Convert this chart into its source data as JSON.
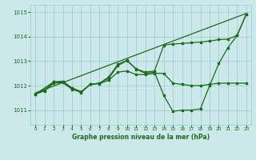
{
  "title": "Graphe pression niveau de la mer (hPa)",
  "bg_color": "#cce8ea",
  "grid_color": "#99cccc",
  "line_color": "#1a6b1a",
  "xlim": [
    -0.5,
    23.5
  ],
  "ylim": [
    1010.4,
    1015.3
  ],
  "yticks": [
    1011,
    1012,
    1013,
    1014,
    1015
  ],
  "xticks": [
    0,
    1,
    2,
    3,
    4,
    5,
    6,
    7,
    8,
    9,
    10,
    11,
    12,
    13,
    14,
    15,
    16,
    17,
    18,
    19,
    20,
    21,
    22,
    23
  ],
  "series1": {
    "x": [
      0,
      23
    ],
    "y": [
      1011.7,
      1014.95
    ]
  },
  "series2": {
    "x": [
      0,
      1,
      2,
      3,
      4,
      5,
      6,
      7,
      8,
      9,
      10,
      11,
      12,
      13,
      14,
      15,
      16,
      17,
      18,
      19,
      20,
      21,
      22,
      23
    ],
    "y": [
      1011.65,
      1011.82,
      1012.15,
      1012.15,
      1011.9,
      1011.75,
      1012.05,
      1012.1,
      1012.3,
      1012.82,
      1013.02,
      1012.67,
      1012.5,
      1012.55,
      1011.6,
      1010.95,
      1011.0,
      1011.0,
      1011.05,
      1012.0,
      1012.9,
      1013.55,
      1014.05,
      1014.92
    ]
  },
  "series3": {
    "x": [
      0,
      1,
      2,
      3,
      4,
      5,
      6,
      7,
      8,
      9,
      10,
      11,
      12,
      13,
      14,
      15,
      16,
      17,
      18,
      19,
      20,
      21,
      22,
      23
    ],
    "y": [
      1011.65,
      1011.78,
      1012.1,
      1012.12,
      1011.85,
      1011.72,
      1012.05,
      1012.08,
      1012.22,
      1012.55,
      1012.6,
      1012.45,
      1012.45,
      1012.5,
      1012.5,
      1012.1,
      1012.05,
      1012.0,
      1012.0,
      1012.05,
      1012.1,
      1012.1,
      1012.1,
      1012.1
    ]
  },
  "series4": {
    "x": [
      0,
      2,
      3,
      4,
      5,
      6,
      7,
      8,
      9,
      10,
      11,
      12,
      13,
      14,
      15,
      16,
      17,
      18,
      19,
      20,
      21,
      22,
      23
    ],
    "y": [
      1011.65,
      1012.15,
      1012.18,
      1011.9,
      1011.75,
      1012.05,
      1012.1,
      1012.35,
      1012.87,
      1013.03,
      1012.68,
      1012.55,
      1012.6,
      1013.65,
      1013.7,
      1013.72,
      1013.75,
      1013.78,
      1013.82,
      1013.88,
      1013.9,
      1014.05,
      1014.92
    ]
  }
}
